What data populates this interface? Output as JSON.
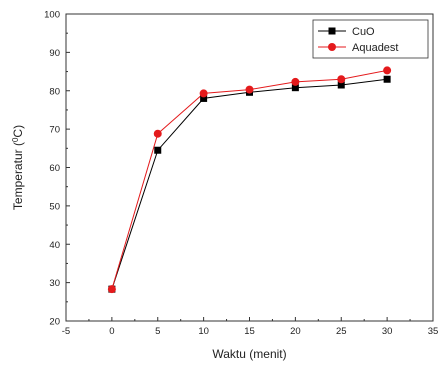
{
  "chart_data": {
    "type": "line",
    "xlabel": "Waktu (menit)",
    "ylabel_main": "Temperatur (",
    "ylabel_sup": "0",
    "ylabel_tail": "C)",
    "xlim": [
      -5,
      35
    ],
    "ylim": [
      20,
      100
    ],
    "xticks": [
      -5,
      0,
      5,
      10,
      15,
      20,
      25,
      30,
      35
    ],
    "yticks": [
      20,
      30,
      40,
      50,
      60,
      70,
      80,
      90,
      100
    ],
    "x": [
      0,
      5,
      10,
      15,
      20,
      25,
      30
    ],
    "legend_position": "top-right",
    "series": [
      {
        "name": "CuO",
        "marker": "square",
        "color": "#000000",
        "values": [
          28.3,
          64.5,
          78.0,
          79.6,
          80.8,
          81.5,
          83.0
        ]
      },
      {
        "name": "Aquadest",
        "marker": "circle",
        "color": "#e41a1c",
        "values": [
          28.3,
          68.8,
          79.3,
          80.3,
          82.3,
          83.0,
          85.3
        ]
      }
    ]
  }
}
